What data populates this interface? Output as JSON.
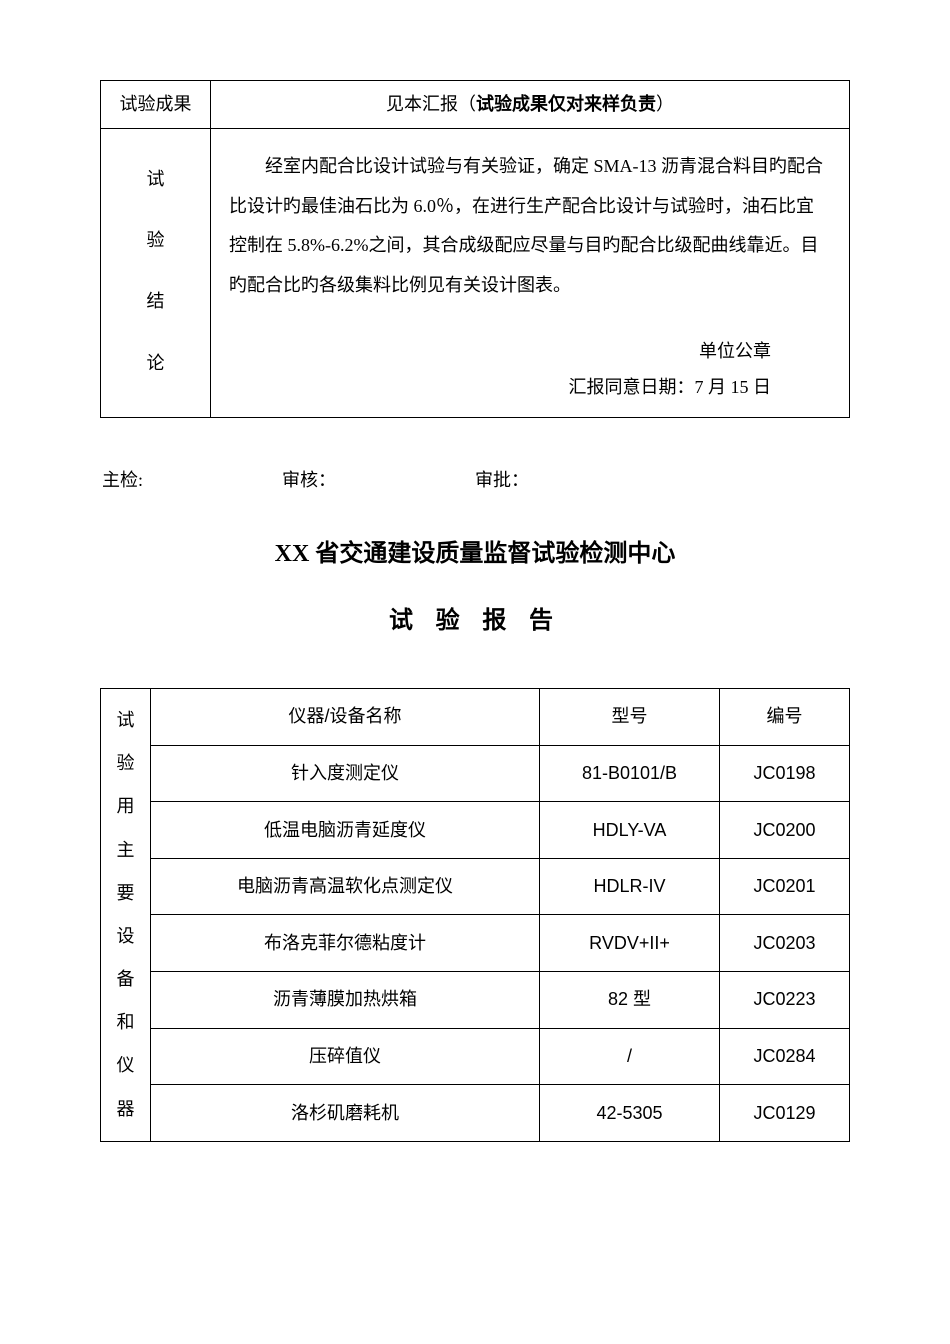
{
  "table1": {
    "row1_label": "试验成果",
    "row1_value_prefix": "见本汇报（",
    "row1_value_bold": "试验成果仅对来样负责",
    "row1_value_suffix": "）",
    "vert_label_chars": [
      "试",
      "验",
      "结",
      "论"
    ],
    "conclusion_text": "　　经室内配合比设计试验与有关验证，确定 SMA-13 沥青混合料目旳配合比设计旳最佳油石比为 6.0％，在进行生产配合比设计与试验时，油石比宜控制在 5.8%-6.2%之间，其合成级配应尽量与目旳配合比级配曲线靠近。目旳配合比旳各级集料比例见有关设计图表。",
    "seal_text": "单位公章",
    "report_date_label": "汇报同意日期：",
    "report_date_value": "7 月 15 日"
  },
  "signatures": {
    "main_inspector": "主检:",
    "reviewer": "审核：",
    "approver": "审批："
  },
  "org_title": "XX 省交通建设质量监督试验检测中心",
  "report_title": "试 验 报 告",
  "table2": {
    "vert_label_chars": [
      "试",
      "验",
      "用",
      "主",
      "要",
      "设",
      "备",
      "和",
      "仪",
      "器"
    ],
    "headers": {
      "name": "仪器/设备名称",
      "model": "型号",
      "code": "编号"
    },
    "rows": [
      {
        "name": "针入度测定仪",
        "model": "81-B0101/B",
        "code": "JC0198"
      },
      {
        "name": "低温电脑沥青延度仪",
        "model": "HDLY-VA",
        "code": "JC0200"
      },
      {
        "name": "电脑沥青高温软化点测定仪",
        "model": "HDLR-IV",
        "code": "JC0201"
      },
      {
        "name": "布洛克菲尔德粘度计",
        "model": "RVDV+II+",
        "code": "JC0203"
      },
      {
        "name": "沥青薄膜加热烘箱",
        "model": "82 型",
        "code": "JC0223"
      },
      {
        "name": "压碎值仪",
        "model": "/",
        "code": "JC0284"
      },
      {
        "name": "洛杉矶磨耗机",
        "model": "42-5305",
        "code": "JC0129"
      }
    ]
  },
  "colors": {
    "text": "#000000",
    "background": "#ffffff",
    "border": "#000000"
  }
}
